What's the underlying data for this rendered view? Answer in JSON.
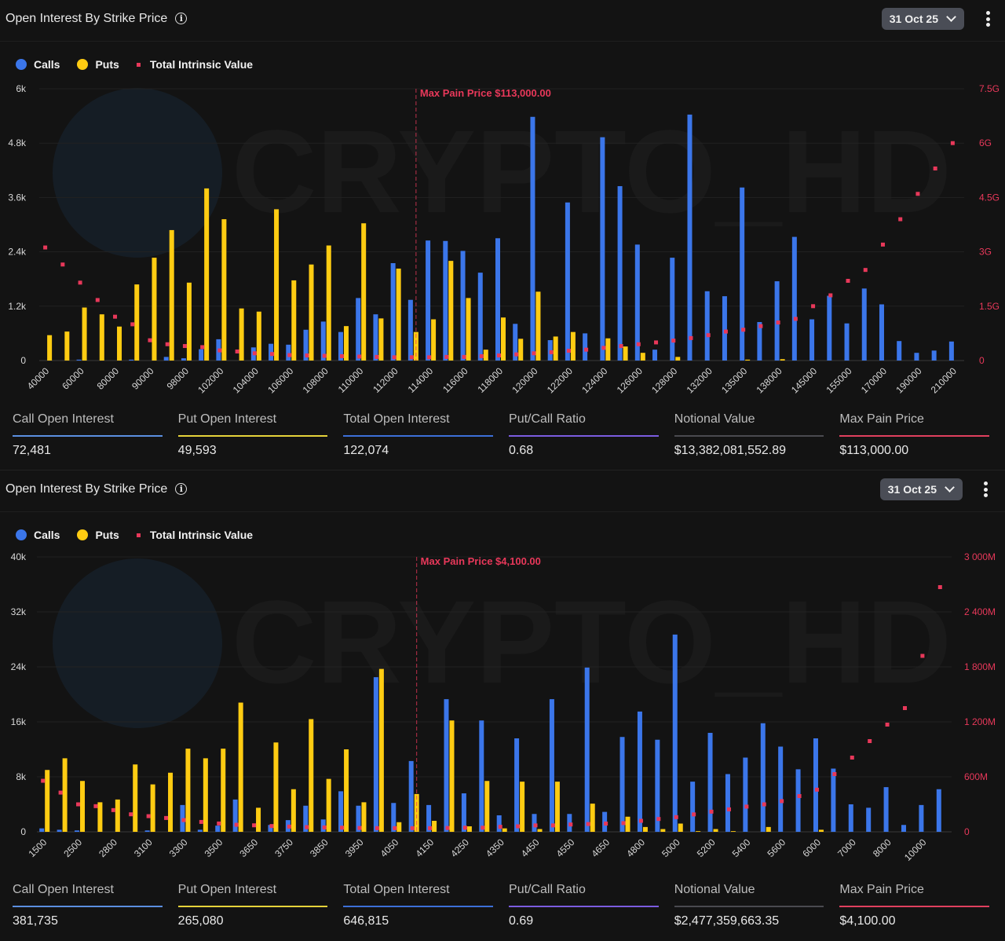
{
  "colors": {
    "calls": "#3b76ea",
    "puts": "#ffcc12",
    "tiv": "#e8385a",
    "maxpain": "#e8385a"
  },
  "watermark": "CRYPTO_HD",
  "panels": [
    {
      "title": "Open Interest By Strike Price",
      "info_icon": "i",
      "date": "31 Oct 25",
      "legend": {
        "calls": "Calls",
        "puts": "Puts",
        "tiv": "Total Intrinsic Value"
      },
      "stats": [
        {
          "label": "Call Open Interest",
          "value": "72,481",
          "color": "#5b8fe0"
        },
        {
          "label": "Put Open Interest",
          "value": "49,593",
          "color": "#e6d23a"
        },
        {
          "label": "Total Open Interest",
          "value": "122,074",
          "color": "#3c6fd8"
        },
        {
          "label": "Put/Call Ratio",
          "value": "0.68",
          "color": "#7b5ce0"
        },
        {
          "label": "Notional Value",
          "value": "$13,382,081,552.89",
          "color": "#4a4a4f"
        },
        {
          "label": "Max Pain Price",
          "value": "$113,000.00",
          "color": "#e0405e"
        }
      ]
    },
    {
      "title": "Open Interest By Strike Price",
      "info_icon": "i",
      "date": "31 Oct 25",
      "legend": {
        "calls": "Calls",
        "puts": "Puts",
        "tiv": "Total Intrinsic Value"
      },
      "stats": [
        {
          "label": "Call Open Interest",
          "value": "381,735",
          "color": "#5b8fe0"
        },
        {
          "label": "Put Open Interest",
          "value": "265,080",
          "color": "#e6d23a"
        },
        {
          "label": "Total Open Interest",
          "value": "646,815",
          "color": "#3c6fd8"
        },
        {
          "label": "Put/Call Ratio",
          "value": "0.69",
          "color": "#7b5ce0"
        },
        {
          "label": "Notional Value",
          "value": "$2,477,359,663.35",
          "color": "#4a4a4f"
        },
        {
          "label": "Max Pain Price",
          "value": "$4,100.00",
          "color": "#e0405e"
        }
      ]
    }
  ],
  "chart_data": [
    {
      "type": "bar",
      "title": "Open Interest By Strike Price",
      "categories": [
        "40000",
        "50000",
        "60000",
        "70000",
        "80000",
        "85000",
        "90000",
        "95000",
        "98000",
        "100000",
        "102000",
        "103000",
        "104000",
        "105000",
        "106000",
        "107000",
        "108000",
        "109000",
        "110000",
        "111000",
        "112000",
        "113000",
        "114000",
        "115000",
        "116000",
        "117000",
        "118000",
        "119000",
        "120000",
        "121000",
        "122000",
        "123000",
        "124000",
        "125000",
        "126000",
        "127000",
        "128000",
        "130000",
        "132000",
        "134000",
        "135000",
        "136000",
        "138000",
        "140000",
        "145000",
        "150000",
        "155000",
        "160000",
        "170000",
        "180000",
        "190000",
        "200000",
        "210000"
      ],
      "series": [
        {
          "name": "Calls",
          "axis": "left",
          "values": [
            0,
            0,
            20,
            0,
            0,
            20,
            0,
            80,
            50,
            250,
            470,
            0,
            290,
            370,
            350,
            680,
            860,
            630,
            1380,
            1020,
            2150,
            1340,
            2650,
            2640,
            2420,
            1940,
            2700,
            810,
            5380,
            450,
            3490,
            600,
            4930,
            3850,
            2560,
            240,
            2270,
            5430,
            1530,
            1420,
            3820,
            850,
            1750,
            2730,
            910,
            1430,
            820,
            1590,
            1240,
            430,
            170,
            220,
            420
          ]
        },
        {
          "name": "Puts",
          "axis": "left",
          "values": [
            560,
            640,
            1170,
            1020,
            750,
            1680,
            2270,
            2880,
            1720,
            3800,
            3120,
            1150,
            1080,
            3340,
            1770,
            2120,
            2540,
            760,
            3030,
            930,
            2030,
            630,
            910,
            2200,
            1380,
            240,
            950,
            480,
            1520,
            530,
            630,
            0,
            490,
            310,
            170,
            0,
            80,
            0,
            0,
            0,
            20,
            0,
            30,
            0,
            0,
            0,
            0,
            0,
            0,
            0,
            0,
            0,
            0
          ]
        },
        {
          "name": "Total Intrinsic Value",
          "axis": "right",
          "unit": "G",
          "values": [
            3.12,
            2.65,
            2.15,
            1.67,
            1.21,
            1.0,
            0.56,
            0.45,
            0.4,
            0.37,
            0.28,
            0.25,
            0.2,
            0.18,
            0.15,
            0.14,
            0.13,
            0.12,
            0.11,
            0.1,
            0.09,
            0.09,
            0.09,
            0.1,
            0.1,
            0.12,
            0.14,
            0.17,
            0.2,
            0.23,
            0.27,
            0.3,
            0.35,
            0.4,
            0.45,
            0.5,
            0.55,
            0.62,
            0.7,
            0.8,
            0.85,
            0.95,
            1.05,
            1.15,
            1.5,
            1.8,
            2.2,
            2.5,
            3.2,
            3.9,
            4.6,
            5.3,
            6.0
          ]
        }
      ],
      "ylim": [
        0,
        6000
      ],
      "yticks": [
        {
          "v": 0,
          "label": "0"
        },
        {
          "v": 1200,
          "label": "1.2k"
        },
        {
          "v": 2400,
          "label": "2.4k"
        },
        {
          "v": 3600,
          "label": "3.6k"
        },
        {
          "v": 4800,
          "label": "4.8k"
        },
        {
          "v": 6000,
          "label": "6k"
        }
      ],
      "y2lim": [
        0,
        7.5
      ],
      "y2ticks": [
        {
          "v": 0,
          "label": "0"
        },
        {
          "v": 1.5,
          "label": "1.5G"
        },
        {
          "v": 3,
          "label": "3G"
        },
        {
          "v": 4.5,
          "label": "4.5G"
        },
        {
          "v": 6,
          "label": "6G"
        },
        {
          "v": 7.5,
          "label": "7.5G"
        }
      ],
      "max_pain": {
        "category": "113000",
        "label": "Max Pain Price $113,000.00"
      },
      "xtick_every": 2,
      "grid": true,
      "legend_position": "top-left"
    },
    {
      "type": "bar",
      "title": "Open Interest By Strike Price",
      "categories": [
        "1500",
        "2000",
        "2500",
        "2600",
        "2800",
        "3000",
        "3100",
        "3200",
        "3300",
        "3400",
        "3500",
        "3600",
        "3650",
        "3700",
        "3750",
        "3800",
        "3850",
        "3900",
        "3950",
        "4000",
        "4050",
        "4100",
        "4150",
        "4200",
        "4250",
        "4300",
        "4350",
        "4400",
        "4450",
        "4500",
        "4550",
        "4600",
        "4650",
        "4700",
        "4800",
        "4900",
        "5000",
        "5100",
        "5200",
        "5300",
        "5400",
        "5500",
        "5600",
        "5800",
        "6000",
        "6500",
        "7000",
        "7500",
        "8000",
        "9000",
        "10000",
        "12000"
      ],
      "series": [
        {
          "name": "Calls",
          "axis": "left",
          "values": [
            500,
            300,
            200,
            0,
            0,
            0,
            200,
            0,
            3900,
            300,
            900,
            4700,
            0,
            1000,
            1700,
            3800,
            1800,
            5900,
            3800,
            22500,
            4200,
            10300,
            3900,
            19300,
            5600,
            16200,
            2400,
            13600,
            2600,
            19300,
            2600,
            23900,
            2900,
            13800,
            17500,
            13400,
            28700,
            7300,
            14400,
            8400,
            10800,
            15800,
            12400,
            9100,
            13600,
            9200,
            4000,
            3500,
            6500,
            1000,
            3900,
            6200
          ]
        },
        {
          "name": "Puts",
          "axis": "left",
          "values": [
            9000,
            10700,
            7400,
            4300,
            4700,
            9800,
            6900,
            8600,
            12100,
            10700,
            12100,
            18800,
            3500,
            13000,
            6200,
            16400,
            7700,
            12000,
            4300,
            23700,
            1400,
            5500,
            1600,
            16200,
            800,
            7400,
            500,
            7300,
            400,
            7300,
            0,
            4100,
            0,
            2200,
            700,
            400,
            1200,
            100,
            400,
            100,
            0,
            700,
            0,
            0,
            300,
            0,
            0,
            0,
            0,
            0,
            0,
            0
          ]
        },
        {
          "name": "Total Intrinsic Value",
          "axis": "right",
          "unit": "M",
          "values": [
            557,
            428,
            300,
            280,
            237,
            191,
            171,
            151,
            128,
            108,
            91,
            77,
            71,
            63,
            57,
            51,
            48,
            45,
            42,
            40,
            40,
            40,
            40,
            42,
            45,
            45,
            55,
            60,
            70,
            70,
            80,
            85,
            90,
            95,
            120,
            140,
            160,
            190,
            220,
            245,
            275,
            300,
            335,
            390,
            460,
            630,
            810,
            990,
            1170,
            1350,
            1920,
            2670
          ]
        }
      ],
      "ylim": [
        0,
        40000
      ],
      "yticks": [
        {
          "v": 0,
          "label": "0"
        },
        {
          "v": 8000,
          "label": "8k"
        },
        {
          "v": 16000,
          "label": "16k"
        },
        {
          "v": 24000,
          "label": "24k"
        },
        {
          "v": 32000,
          "label": "32k"
        },
        {
          "v": 40000,
          "label": "40k"
        }
      ],
      "y2lim": [
        0,
        3000
      ],
      "y2ticks": [
        {
          "v": 0,
          "label": "0"
        },
        {
          "v": 600,
          "label": "600M"
        },
        {
          "v": 1200,
          "label": "1 200M"
        },
        {
          "v": 1800,
          "label": "1 800M"
        },
        {
          "v": 2400,
          "label": "2 400M"
        },
        {
          "v": 3000,
          "label": "3 000M"
        }
      ],
      "max_pain": {
        "category": "4100",
        "label": "Max Pain Price $4,100.00"
      },
      "xtick_every": 2,
      "grid": true,
      "legend_position": "top-left"
    }
  ]
}
